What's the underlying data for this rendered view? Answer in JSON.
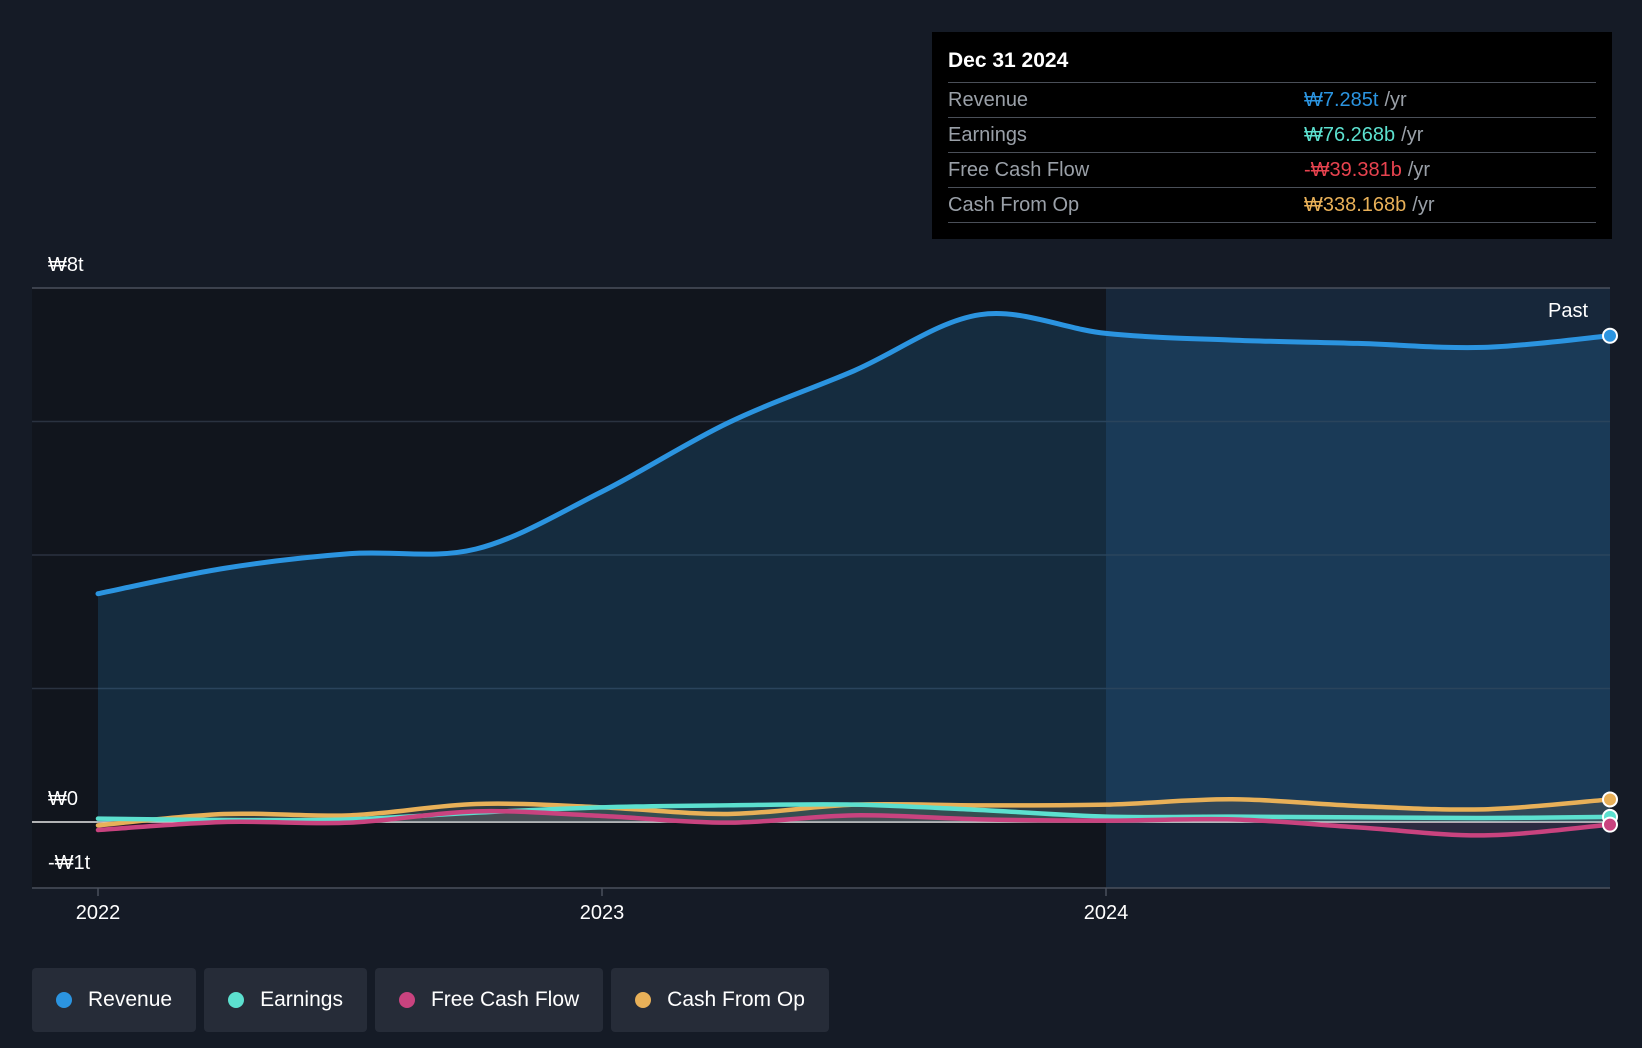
{
  "tooltip": {
    "date": "Dec 31 2024",
    "rows": [
      {
        "label": "Revenue",
        "value": "₩7.285t",
        "unit": "/yr",
        "color": "#2b94e0"
      },
      {
        "label": "Earnings",
        "value": "₩76.268b",
        "unit": "/yr",
        "color": "#5ce0cf"
      },
      {
        "label": "Free Cash Flow",
        "value": "-₩39.381b",
        "unit": "/yr",
        "color": "#e8434f"
      },
      {
        "label": "Cash From Op",
        "value": "₩338.168b",
        "unit": "/yr",
        "color": "#e8b058"
      }
    ]
  },
  "past_label": "Past",
  "legend": [
    {
      "label": "Revenue",
      "color": "#2b94e0"
    },
    {
      "label": "Earnings",
      "color": "#5ce0cf"
    },
    {
      "label": "Free Cash Flow",
      "color": "#c9437f"
    },
    {
      "label": "Cash From Op",
      "color": "#e8b058"
    }
  ],
  "chart_data": {
    "type": "area",
    "y_tick_labels": [
      "₩8t",
      "₩0",
      "-₩1t"
    ],
    "x_tick_labels": [
      "2022",
      "2023",
      "2024"
    ],
    "ylim": [
      -1,
      8
    ],
    "y_unit": "trillion ₩",
    "grid": true,
    "legend_position": "bottom-left",
    "highlight_from": 2024.0,
    "series": [
      {
        "name": "Revenue",
        "color": "#2b94e0",
        "x": [
          2022.0,
          2022.25,
          2022.5,
          2022.75,
          2023.0,
          2023.25,
          2023.5,
          2023.75,
          2024.0,
          2024.25,
          2024.5,
          2024.75,
          2025.0
        ],
        "y": [
          3.42,
          3.8,
          4.02,
          4.09,
          4.95,
          5.98,
          6.76,
          7.6,
          7.32,
          7.22,
          7.17,
          7.11,
          7.285
        ]
      },
      {
        "name": "Earnings",
        "color": "#5ce0cf",
        "x": [
          2022.0,
          2022.25,
          2022.5,
          2022.75,
          2023.0,
          2023.25,
          2023.5,
          2023.75,
          2024.0,
          2024.25,
          2024.5,
          2024.75,
          2025.0
        ],
        "y": [
          0.05,
          0.03,
          0.04,
          0.14,
          0.22,
          0.25,
          0.26,
          0.18,
          0.08,
          0.08,
          0.07,
          0.06,
          0.076
        ]
      },
      {
        "name": "Free Cash Flow",
        "color": "#c9437f",
        "x": [
          2022.0,
          2022.25,
          2022.5,
          2022.75,
          2023.0,
          2023.25,
          2023.5,
          2023.75,
          2024.0,
          2024.25,
          2024.5,
          2024.75,
          2025.0
        ],
        "y": [
          -0.12,
          0.0,
          -0.01,
          0.16,
          0.09,
          -0.01,
          0.1,
          0.04,
          0.02,
          0.04,
          -0.08,
          -0.2,
          -0.039
        ]
      },
      {
        "name": "Cash From Op",
        "color": "#e8b058",
        "x": [
          2022.0,
          2022.25,
          2022.5,
          2022.75,
          2023.0,
          2023.25,
          2023.5,
          2023.75,
          2024.0,
          2024.25,
          2024.5,
          2024.75,
          2025.0
        ],
        "y": [
          -0.05,
          0.12,
          0.1,
          0.27,
          0.22,
          0.12,
          0.26,
          0.25,
          0.26,
          0.34,
          0.24,
          0.19,
          0.338
        ]
      }
    ]
  }
}
